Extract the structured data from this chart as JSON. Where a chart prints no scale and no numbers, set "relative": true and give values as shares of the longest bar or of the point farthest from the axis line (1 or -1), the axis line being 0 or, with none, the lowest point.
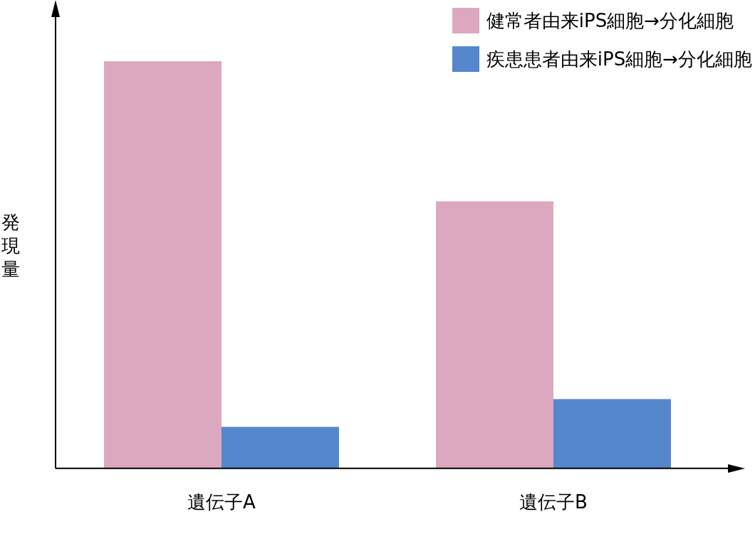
{
  "chart_data": {
    "type": "bar",
    "relative": true,
    "ylabel": "発現量",
    "categories": [
      "遺伝子A",
      "遺伝子B"
    ],
    "legend": "top right",
    "grid": false,
    "series": [
      {
        "name": "健常者由来iPS細胞→分化細胞",
        "color": "#dca8bf",
        "values": [
          1,
          0.656
        ]
      },
      {
        "name": "疾患患者由来iPS細胞→分化細胞",
        "color": "#5487cc",
        "values": [
          0.102,
          0.17
        ]
      }
    ]
  }
}
